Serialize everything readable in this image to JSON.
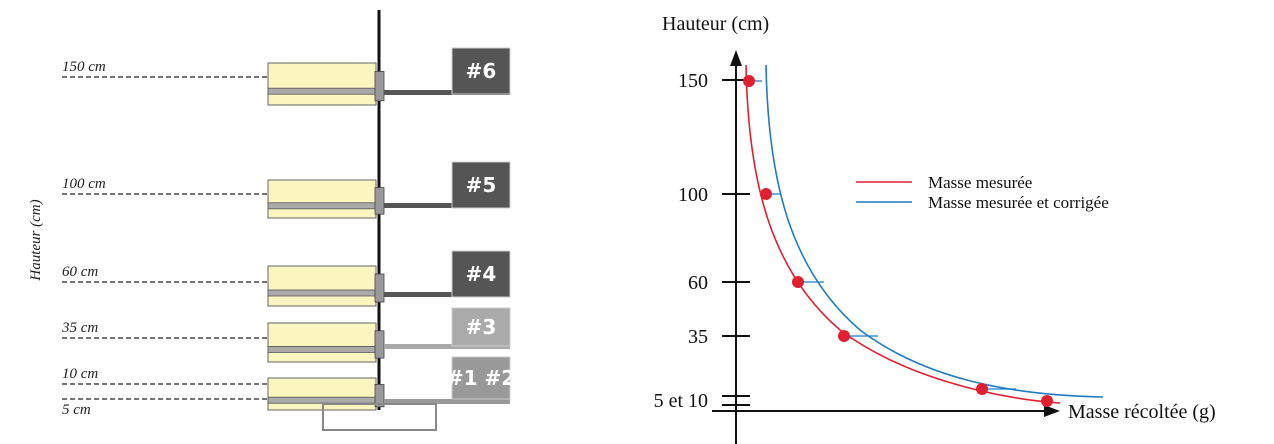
{
  "left": {
    "axis_label": "Hauteur (cm)",
    "levels": [
      "150 cm",
      "100 cm",
      "60 cm",
      "35 cm",
      "10 cm",
      "5 cm"
    ],
    "badges": [
      "#6",
      "#5",
      "#4",
      "#3",
      "#1 #2"
    ]
  },
  "right": {
    "y_label": "Hauteur (cm)",
    "x_label": "Masse récoltée (g)",
    "ticks": [
      "150",
      "100",
      "60",
      "35",
      "5 et 10"
    ],
    "legend": [
      "Masse mesurée",
      "Masse mesurée et corrigée"
    ]
  }
}
